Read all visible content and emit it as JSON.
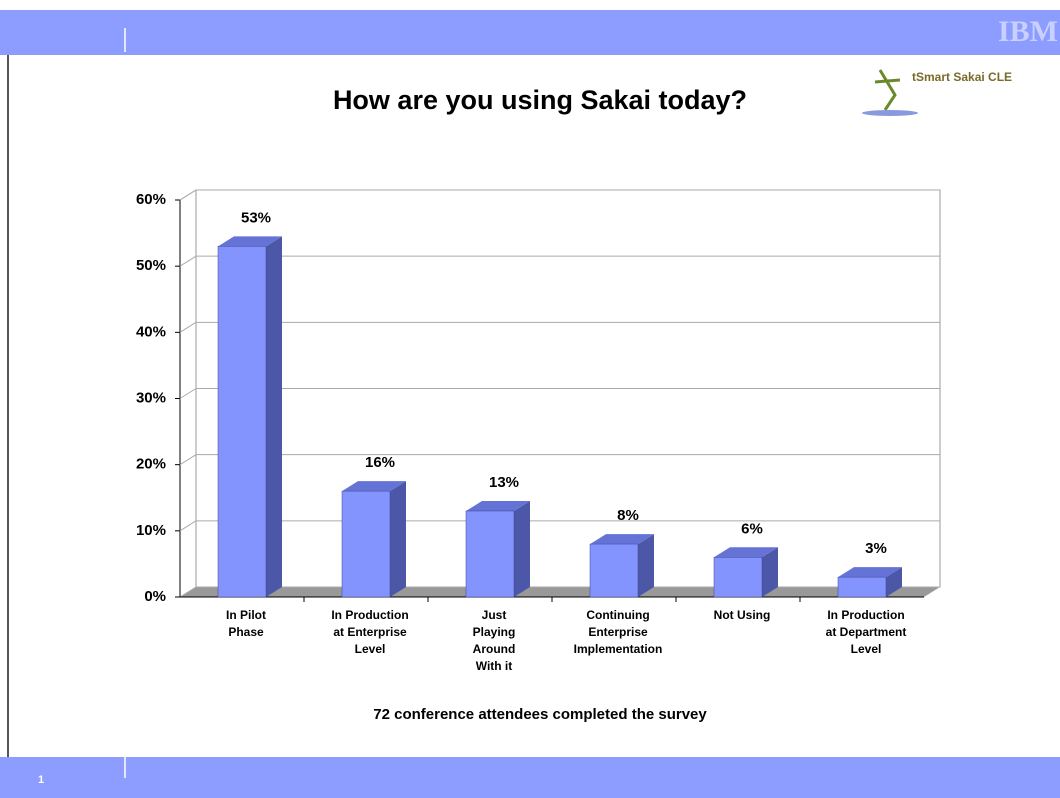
{
  "slide": {
    "logo": "IBM",
    "brand": "tSmart Sakai CLE",
    "page_number": "1"
  },
  "chart_data": {
    "type": "bar3d",
    "title": "How are you using Sakai today?",
    "subtitle": "72 conference attendees completed the survey",
    "categories": [
      [
        "In Pilot",
        "Phase"
      ],
      [
        "In Production",
        "at Enterprise",
        "Level"
      ],
      [
        "Just",
        "Playing",
        "Around",
        "With it"
      ],
      [
        "Continuing",
        "Enterprise",
        "Implementation"
      ],
      [
        "Not Using"
      ],
      [
        "In Production",
        "at Department",
        "Level"
      ]
    ],
    "values": [
      53,
      16,
      13,
      8,
      6,
      3
    ],
    "value_labels": [
      "53%",
      "16%",
      "13%",
      "8%",
      "6%",
      "3%"
    ],
    "color": "#8494ff",
    "ylim": [
      0,
      60
    ],
    "yticks": [
      {
        "value": 0,
        "label": "0%"
      },
      {
        "value": 10,
        "label": "10%"
      },
      {
        "value": 20,
        "label": "20%"
      },
      {
        "value": 30,
        "label": "30%"
      },
      {
        "value": 40,
        "label": "40%"
      },
      {
        "value": 50,
        "label": "50%"
      },
      {
        "value": 60,
        "label": "60%"
      }
    ],
    "grid": true
  }
}
